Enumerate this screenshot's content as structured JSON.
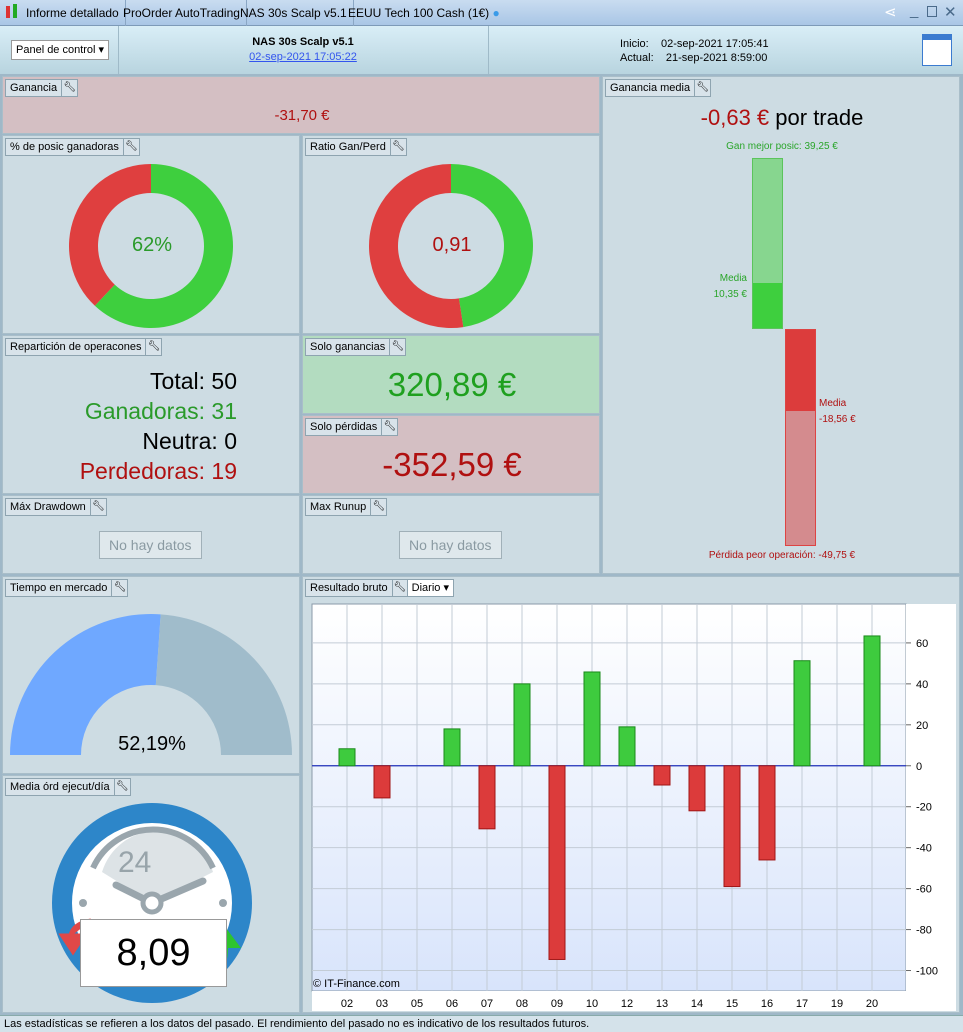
{
  "titlebar": {
    "tabs": [
      "Informe detallado",
      "ProOrder AutoTrading",
      "NAS 30s Scalp v5.1",
      "EEUU Tech 100 Cash (1€)"
    ]
  },
  "header": {
    "dropdown": "Panel de control",
    "strategy": "NAS 30s Scalp v5.1",
    "date_link": "02-sep-2021 17:05:22",
    "inicio_label": "Inicio:",
    "inicio": "02-sep-2021 17:05:41",
    "actual_label": "Actual:",
    "actual": "21-sep-2021 8:59:00"
  },
  "ganancia": {
    "title": "Ganancia",
    "value": "-31,70 €"
  },
  "ganancia_media": {
    "title": "Ganancia media",
    "value": "-0,63 €",
    "suffix": "por trade",
    "best_label": "Gan mejor posic: 39,25 €",
    "best": 39.25,
    "media_label": "Media",
    "media_gain": "10,35 €",
    "media_gain_value": 10.35,
    "media_loss": "-18,56 €",
    "media_loss_value": 18.56,
    "worst_label": "Pérdida peor operación: -49,75 €",
    "worst": 49.75,
    "colors": {
      "green": "#3ecf3e",
      "green_light": "#87d68f",
      "red": "#dc3c3c",
      "red_light": "#d48b8e"
    }
  },
  "pct_ganadoras": {
    "title": "% de posic ganadoras",
    "value": "62%",
    "fraction": 0.62
  },
  "ratio": {
    "title": "Ratio Gan/Perd",
    "value": "0,91",
    "fraction": 0.476
  },
  "reparticion": {
    "title": "Repartición de operacones",
    "total": "Total: 50",
    "ganadoras": "Ganadoras: 31",
    "neutra": "Neutra: 0",
    "perdedoras": "Perdedoras: 19"
  },
  "solo_ganancias": {
    "title": "Solo ganancias",
    "value": "320,89 €"
  },
  "solo_perdidas": {
    "title": "Solo pérdidas",
    "value": "-352,59 €"
  },
  "drawdown": {
    "title": "Máx Drawdown",
    "nodata": "No hay datos"
  },
  "runup": {
    "title": "Max Runup",
    "nodata": "No hay datos"
  },
  "tiempo": {
    "title": "Tiempo en mercado",
    "value": "52,19%",
    "fraction": 0.5219
  },
  "media_ord": {
    "title": "Media órd ejecut/día",
    "value": "8,09",
    "clock": "24"
  },
  "resultado": {
    "title": "Resultado bruto",
    "period": "Diario",
    "watermark": "© IT-Finance.com"
  },
  "chart_data": {
    "type": "bar",
    "categories": [
      "02",
      "03",
      "05",
      "06",
      "07",
      "08",
      "09",
      "10",
      "12",
      "13",
      "14",
      "15",
      "16",
      "17",
      "19",
      "20"
    ],
    "values": [
      8.3,
      -15.7,
      0,
      18,
      -30.8,
      40,
      -94.6,
      45.8,
      19,
      -9.4,
      -22,
      -59,
      -46,
      51.3,
      0,
      63.4
    ],
    "yticks": [
      60,
      40,
      20,
      0,
      -20,
      -40,
      -60,
      -80,
      -100
    ],
    "ylim": [
      -110,
      79
    ],
    "grid": true,
    "colors": {
      "pos": "#3ecb3e",
      "neg": "#dc3b3b"
    }
  },
  "footer": "Las estadísticas se refieren a los datos del pasado. El rendimiento del pasado no es indicativo de los resultados futuros."
}
